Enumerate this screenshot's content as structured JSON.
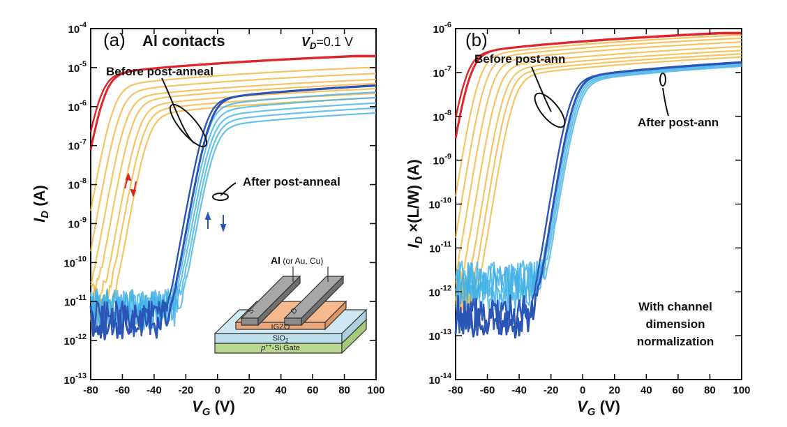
{
  "chart_data": [
    {
      "type": "line",
      "panel_label": "(a)",
      "title": "Al contacts",
      "condition": {
        "var": "V",
        "sub": "D",
        "rest": "=0.1 V"
      },
      "xlabel": {
        "var": "V",
        "sub": "G",
        "unit": " (V)"
      },
      "ylabel": {
        "var": "I",
        "sub": "D",
        "unit": "  (A)"
      },
      "xlim": [
        -80,
        100
      ],
      "ylim": [
        1e-13,
        0.0001
      ],
      "yscale": "log",
      "x_ticks": [
        "-80",
        "-60",
        "-40",
        "-20",
        "0",
        "20",
        "40",
        "60",
        "80",
        "100"
      ],
      "y_ticks": [
        {
          "b": "10",
          "e": "-13"
        },
        {
          "b": "10",
          "e": "-12"
        },
        {
          "b": "10",
          "e": "-11"
        },
        {
          "b": "10",
          "e": "-10"
        },
        {
          "b": "10",
          "e": "-9"
        },
        {
          "b": "10",
          "e": "-8"
        },
        {
          "b": "10",
          "e": "-7"
        },
        {
          "b": "10",
          "e": "-6"
        },
        {
          "b": "10",
          "e": "-5"
        },
        {
          "b": "10",
          "e": "-4"
        }
      ],
      "series": [
        {
          "color": "#e0242c",
          "role": "highlight",
          "vth": -72,
          "isat": 2e-05,
          "off": 1e-11
        },
        {
          "color": "#2c55b8",
          "role": "highlight",
          "vth": -5,
          "isat": 4.5e-06,
          "off": 3e-12
        },
        {
          "color": "#f2b53c",
          "role": "family",
          "vth": [
            -66,
            -62,
            -58,
            -54,
            -50,
            -47,
            -44
          ],
          "isat": [
            1e-05,
            7e-06,
            5e-06,
            4e-06,
            3e-06,
            2.3e-06,
            1.8e-06
          ],
          "off": 7e-12
        },
        {
          "color": "#41b2e6",
          "role": "family",
          "vth": [
            -6,
            -5,
            -4,
            -3,
            -2
          ],
          "isat": [
            3e-06,
            2.2e-06,
            1.6e-06,
            1.2e-06,
            9e-07
          ],
          "off": 5e-12
        }
      ],
      "annotations": [
        "Before post-anneal",
        "After post-anneal"
      ],
      "inset": {
        "metal": "Al",
        "metal_note": " (or Au, Cu)",
        "electrode_s": "S",
        "electrode_d": "D",
        "layer_1": "IGZO",
        "layer_2": "SiO",
        "layer_2_sub": "2",
        "layer_3_pre": "p",
        "layer_3_sup": "++",
        "layer_3_rest": "-Si Gate"
      }
    },
    {
      "type": "line",
      "panel_label": "(b)",
      "xlabel": {
        "var": "V",
        "sub": "G",
        "unit": " (V)"
      },
      "ylabel": {
        "var": "I",
        "sub": "D",
        "unit": " ×(L/W)  (A)"
      },
      "xlim": [
        -80,
        100
      ],
      "ylim": [
        1e-14,
        1e-06
      ],
      "yscale": "log",
      "x_ticks": [
        "-80",
        "-60",
        "-40",
        "-20",
        "0",
        "20",
        "40",
        "60",
        "80",
        "100"
      ],
      "y_ticks": [
        {
          "b": "10",
          "e": "-14"
        },
        {
          "b": "10",
          "e": "-13"
        },
        {
          "b": "10",
          "e": "-12"
        },
        {
          "b": "10",
          "e": "-11"
        },
        {
          "b": "10",
          "e": "-10"
        },
        {
          "b": "10",
          "e": "-9"
        },
        {
          "b": "10",
          "e": "-8"
        },
        {
          "b": "10",
          "e": "-7"
        },
        {
          "b": "10",
          "e": "-6"
        }
      ],
      "series": [
        {
          "color": "#e0242c",
          "role": "highlight",
          "vth": -72,
          "isat": 8e-07,
          "off": 1e-12
        },
        {
          "color": "#2c55b8",
          "role": "highlight",
          "vth": -6,
          "isat": 2.2e-07,
          "off": 2.5e-13
        },
        {
          "color": "#f2b53c",
          "role": "family",
          "vth": [
            -66,
            -62,
            -58,
            -54,
            -50,
            -47,
            -44
          ],
          "isat": [
            7e-07,
            6e-07,
            5e-07,
            4e-07,
            3.3e-07,
            2.8e-07,
            2.4e-07
          ],
          "off": 8e-13
        },
        {
          "color": "#41b2e6",
          "role": "family",
          "vth": [
            -6,
            -5,
            -4,
            -3
          ],
          "isat": [
            2.1e-07,
            2e-07,
            1.9e-07,
            1.8e-07
          ],
          "off": 1.5e-12
        }
      ],
      "annotations": [
        "Before post-ann",
        "After post-ann",
        "With channel",
        "dimension",
        "normalization"
      ]
    }
  ]
}
